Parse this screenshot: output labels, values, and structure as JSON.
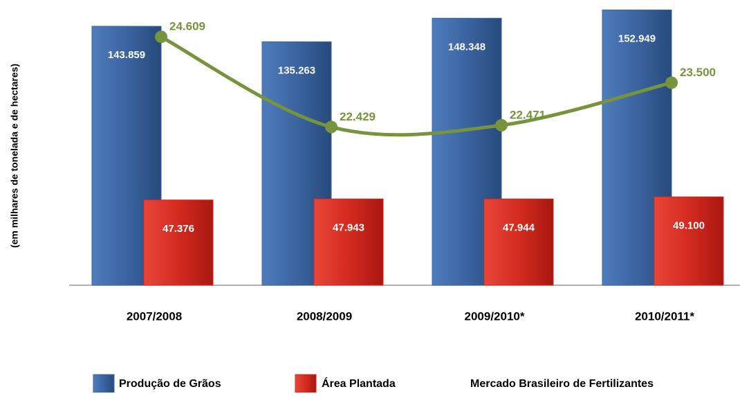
{
  "chart_data": {
    "type": "bar",
    "ylabel": "(em milhares de tonelada e de hectares)",
    "categories": [
      "2007/2008",
      "2008/2009",
      "2009/2010*",
      "2010/2011*"
    ],
    "ylim": [
      0,
      155000
    ],
    "y2lim": [
      18600,
      25350
    ],
    "series": [
      {
        "name": "Produção de Grãos",
        "color": "#3b64a0",
        "values": [
          143859,
          135263,
          148348,
          152949
        ],
        "value_labels": [
          "143.859",
          "135.263",
          "148.348",
          "152.949"
        ]
      },
      {
        "name": "Área Plantada",
        "color": "#d42a20",
        "values": [
          47376,
          47943,
          47944,
          49100
        ],
        "value_labels": [
          "47.376",
          "47.943",
          "47.944",
          "49.100"
        ]
      },
      {
        "name": "Mercado Brasileiro de Fertilizantes",
        "color": "#77933c",
        "type": "line",
        "axis": "y2",
        "values": [
          24609,
          22429,
          22471,
          23500
        ],
        "value_labels": [
          "24.609",
          "22.429",
          "22.471",
          "23.500"
        ]
      }
    ]
  }
}
